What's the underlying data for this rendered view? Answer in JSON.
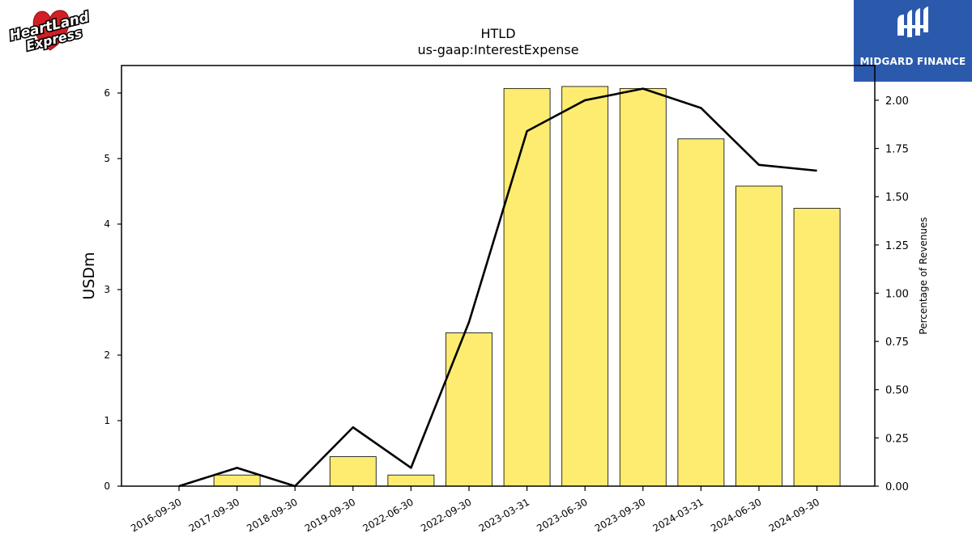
{
  "header": {
    "title": "HTLD",
    "subtitle": "us-gaap:InterestExpense"
  },
  "logos": {
    "left": {
      "text_line1": "HeartLand",
      "text_line2": "Express",
      "icon": "heart-logo-icon",
      "color": "#d21f26"
    },
    "right": {
      "label": "MIDGARD FINANCE",
      "icon": "midgard-logo-icon",
      "background": "#2b5aad"
    }
  },
  "chart_data": {
    "type": "bar",
    "title": "HTLD",
    "subtitle": "us-gaap:InterestExpense",
    "categories": [
      "2016-09-30",
      "2017-09-30",
      "2018-09-30",
      "2019-09-30",
      "2022-06-30",
      "2022-09-30",
      "2023-03-31",
      "2023-06-30",
      "2023-09-30",
      "2024-03-31",
      "2024-06-30",
      "2024-09-30"
    ],
    "series": [
      {
        "kind": "bar",
        "axis": "left",
        "color": "#fdec70",
        "values": [
          0,
          0.17,
          0,
          0.45,
          0.17,
          2.34,
          6.07,
          6.1,
          6.07,
          5.3,
          4.58,
          4.24
        ]
      },
      {
        "kind": "line",
        "axis": "right",
        "color": "#000000",
        "values": [
          0,
          0.095,
          0,
          0.305,
          0.095,
          0.85,
          1.84,
          2.0,
          2.06,
          1.96,
          1.665,
          1.635
        ]
      }
    ],
    "ylabel": "USDm",
    "ylabel_right": "Percentage of Revenues",
    "ylim": [
      0,
      6.42
    ],
    "ylim_right": [
      0,
      2.18
    ],
    "yticks": [
      "0",
      "1",
      "2",
      "3",
      "4",
      "5",
      "6"
    ],
    "yticks_right": [
      "0.00",
      "0.25",
      "0.50",
      "0.75",
      "1.00",
      "1.25",
      "1.50",
      "1.75",
      "2.00"
    ],
    "grid": false,
    "legend": "none"
  }
}
